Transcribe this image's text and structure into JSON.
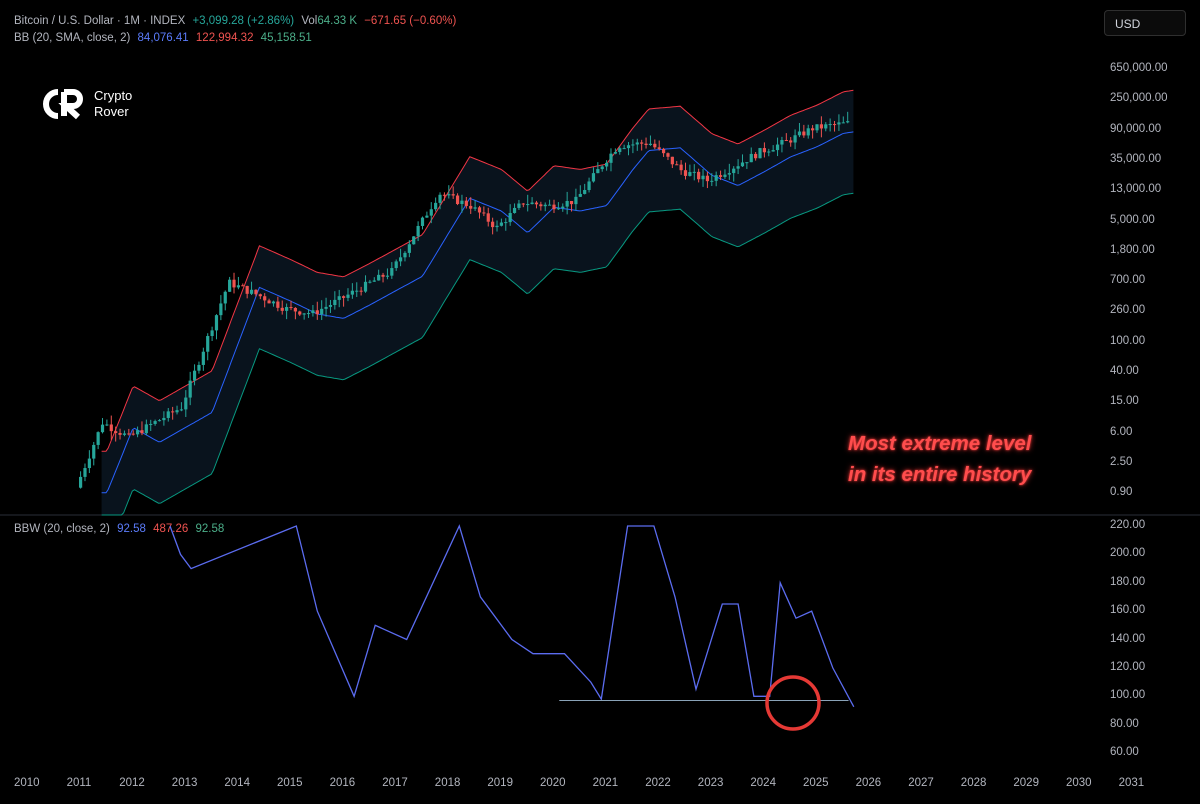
{
  "header": {
    "symbol": "Bitcoin / U.S. Dollar · 1M · INDEX",
    "change": "+3,099.28 (+2.86%)",
    "vol_label": "Vol",
    "vol_value": "64.33 K",
    "vol_change": "−671.65 (−0.60%)"
  },
  "bb": {
    "label": "BB (20, SMA, close, 2)",
    "basis": "84,076.41",
    "upper": "122,994.32",
    "lower": "45,158.51"
  },
  "bbw": {
    "label": "BBW (20, close, 2)",
    "value1": "92.58",
    "value2": "487.26",
    "value3": "92.58"
  },
  "currency_button": "USD",
  "logo": {
    "line1": "Crypto",
    "line2": "Rover"
  },
  "annotation": {
    "line1": "Most extreme level",
    "line2": "in its entire history"
  },
  "price_axis": [
    "650,000.00",
    "250,000.00",
    "90,000.00",
    "35,000.00",
    "13,000.00",
    "5,000.00",
    "1,800.00",
    "700.00",
    "260.00",
    "100.00",
    "40.00",
    "15.00",
    "6.00",
    "2.50",
    "0.90"
  ],
  "bbw_axis": [
    "220.00",
    "200.00",
    "180.00",
    "160.00",
    "140.00",
    "120.00",
    "100.00",
    "80.00",
    "60.00"
  ],
  "time_axis": [
    "2010",
    "2011",
    "2012",
    "2013",
    "2014",
    "2015",
    "2016",
    "2017",
    "2018",
    "2019",
    "2020",
    "2021",
    "2022",
    "2023",
    "2024",
    "2025",
    "2026",
    "2027",
    "2028",
    "2029",
    "2030",
    "2031"
  ],
  "colors": {
    "up": "#26a69a",
    "down": "#ef5350",
    "bb_upper": "#f23645",
    "bb_basis": "#2962ff",
    "bb_lower": "#089981",
    "bbw": "#5b6cf0",
    "highlight": "#e53935"
  },
  "chart_data": {
    "type": "line",
    "price_scale": "log",
    "series": [
      {
        "name": "BB (20, SMA, close, 2)",
        "x": [
          2011.0,
          2011.5,
          2012,
          2013,
          2013.9,
          2014.5,
          2015,
          2015.5,
          2016,
          2017,
          2017.9,
          2018.5,
          2019,
          2019.5,
          2020,
          2020.5,
          2021,
          2021.3,
          2021.9,
          2022.5,
          2023,
          2023.5,
          2024,
          2024.5,
          2025,
          2025.5,
          2025.7
        ],
        "values": [
          1,
          8,
          5,
          13,
          700,
          450,
          300,
          260,
          400,
          1000,
          12000,
          8000,
          4000,
          9000,
          8000,
          9500,
          30000,
          55000,
          60000,
          25000,
          18000,
          28000,
          45000,
          62000,
          95000,
          108000,
          112000
        ]
      },
      {
        "name": "BBW (20, close, 2)",
        "x": [
          2012.7,
          2012.9,
          2013.1,
          2015.1,
          2015.5,
          2016.2,
          2016.6,
          2017.2,
          2018.2,
          2018.6,
          2019.2,
          2019.6,
          2020.2,
          2020.7,
          2020.9,
          2021.4,
          2021.9,
          2022.3,
          2022.7,
          2023.2,
          2023.5,
          2023.8,
          2024.1,
          2024.3,
          2024.6,
          2024.9,
          2025.3,
          2025.7
        ],
        "values": [
          220,
          200,
          190,
          220,
          160,
          100,
          150,
          140,
          220,
          170,
          140,
          130,
          130,
          110,
          98,
          220,
          220,
          170,
          105,
          165,
          165,
          100,
          100,
          180,
          155,
          160,
          120,
          92.58
        ]
      }
    ],
    "bbw_ylim": [
      60,
      220
    ],
    "x_range": [
      2010,
      2031
    ],
    "reference_level": 97
  }
}
